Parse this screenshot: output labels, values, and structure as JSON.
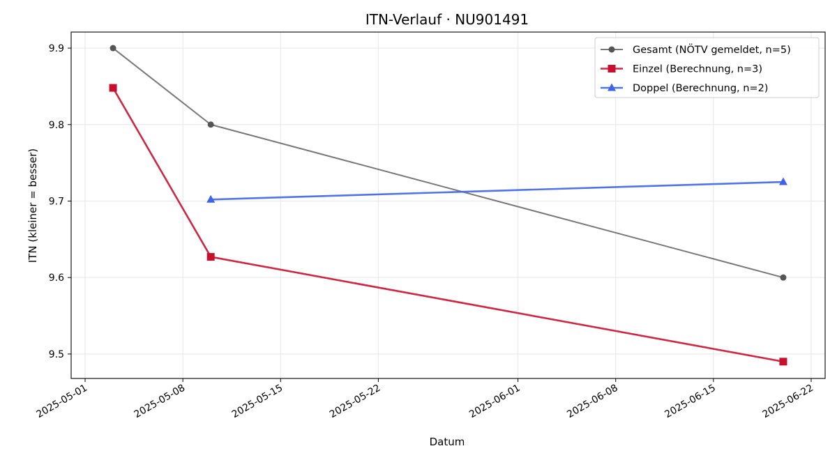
{
  "chart_data": {
    "type": "line",
    "title": "ITN-Verlauf · NU901491",
    "xlabel": "Datum",
    "ylabel": "ITN  (kleiner = besser)",
    "x_type": "date",
    "xlim": [
      "2025-04-30",
      "2025-06-23"
    ],
    "ylim": [
      9.468,
      9.921
    ],
    "x_ticks": [
      "2025-05-01",
      "2025-05-08",
      "2025-05-15",
      "2025-05-22",
      "2025-06-01",
      "2025-06-08",
      "2025-06-15",
      "2025-06-22"
    ],
    "y_ticks": [
      "9.5",
      "9.6",
      "9.7",
      "9.8",
      "9.9"
    ],
    "grid": true,
    "legend_position": "top-right",
    "series": [
      {
        "name": "Gesamt (NÖTV gemeldet, n=5)",
        "color": "#555555",
        "marker": "circle",
        "x": [
          "2025-05-03",
          "2025-05-10",
          "2025-06-20"
        ],
        "y": [
          9.9,
          9.8,
          9.6
        ]
      },
      {
        "name": "Einzel (Berechnung, n=3)",
        "color": "#c8102e",
        "marker": "square",
        "x": [
          "2025-05-03",
          "2025-05-10",
          "2025-06-20"
        ],
        "y": [
          9.848,
          9.627,
          9.49
        ]
      },
      {
        "name": "Doppel (Berechnung, n=2)",
        "color": "#3d63e8",
        "marker": "triangle",
        "x": [
          "2025-05-10",
          "2025-06-20"
        ],
        "y": [
          9.702,
          9.725
        ]
      }
    ]
  }
}
